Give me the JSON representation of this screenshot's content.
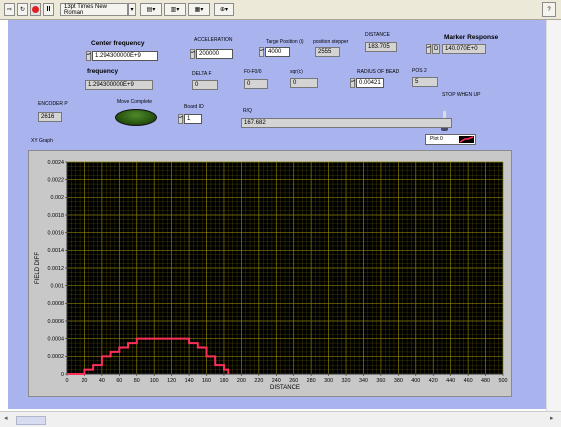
{
  "toolbar": {
    "font_selector": "13pt Times New Roman"
  },
  "controls": {
    "center_frequency": {
      "label": "Center frequency",
      "value": "1.294300000E+9"
    },
    "acceleration": {
      "label": "ACCELERATION",
      "value": "200000"
    },
    "target_position": {
      "label": "Targe Position (i)",
      "value": "4000"
    },
    "position_stepper": {
      "label": "position stepper",
      "value": "2555"
    },
    "distance": {
      "label": "DISTANCE",
      "value": "183.705"
    },
    "marker_response": {
      "label": "Marker Response",
      "prefix": "D",
      "value": "140.070E+0"
    },
    "frequency": {
      "label": "frequency",
      "value": "1.294300000E+9"
    },
    "delta_f": {
      "label": "DELTA F",
      "value": "0"
    },
    "f0_f0": {
      "label": "F0-F0/0",
      "value": "0"
    },
    "sqrt": {
      "label": "sqr(c)",
      "value": "0"
    },
    "radius_of_bead": {
      "label": "RADIUS OF BEAD",
      "value": "0.00421"
    },
    "pos2": {
      "label": "POS 2",
      "value": "5"
    },
    "stop_when_up": {
      "label": "STOP WHEN UP"
    },
    "encoder_p": {
      "label": "ENCODER P",
      "value": "2616"
    },
    "move_complete": {
      "label": "Move Complete"
    },
    "board_id": {
      "label": "Board ID",
      "value": "1"
    },
    "r_over_q": {
      "label": "R/Q",
      "value": "167.682"
    }
  },
  "graph": {
    "title": "XY Graph",
    "plot_legend": "Plot 0"
  },
  "colors": {
    "panel": "#a9b4ef",
    "plot_bg": "#000000",
    "grid": "#8a8000",
    "series": "#ff3058",
    "led": "#2c5a12"
  },
  "chart_data": {
    "type": "line",
    "title": "XY Graph",
    "xlabel": "DISTANCE",
    "ylabel": "FIELD DIFF",
    "xlim": [
      0,
      500
    ],
    "ylim": [
      0,
      0.0024
    ],
    "xticks": [
      "0",
      "20",
      "40",
      "60",
      "80",
      "100",
      "120",
      "140",
      "160",
      "180",
      "200",
      "220",
      "240",
      "260",
      "280",
      "300",
      "320",
      "340",
      "360",
      "380",
      "400",
      "420",
      "440",
      "460",
      "480",
      "500"
    ],
    "yticks": [
      "0",
      "0.0002",
      "0.0004",
      "0.0006",
      "0.0008",
      "0.001",
      "0.0012",
      "0.0014",
      "0.0016",
      "0.0018",
      "0.002",
      "0.0022",
      "0.0024"
    ],
    "grid": true,
    "series": [
      {
        "name": "Plot 0",
        "step": true,
        "x": [
          0,
          20,
          30,
          40,
          50,
          60,
          70,
          80,
          140,
          150,
          160,
          170,
          180,
          185
        ],
        "y": [
          0,
          5e-05,
          0.0001,
          0.0002,
          0.00025,
          0.0003,
          0.00035,
          0.0004,
          0.00035,
          0.0003,
          0.0002,
          0.0001,
          5e-05,
          0
        ]
      }
    ]
  }
}
